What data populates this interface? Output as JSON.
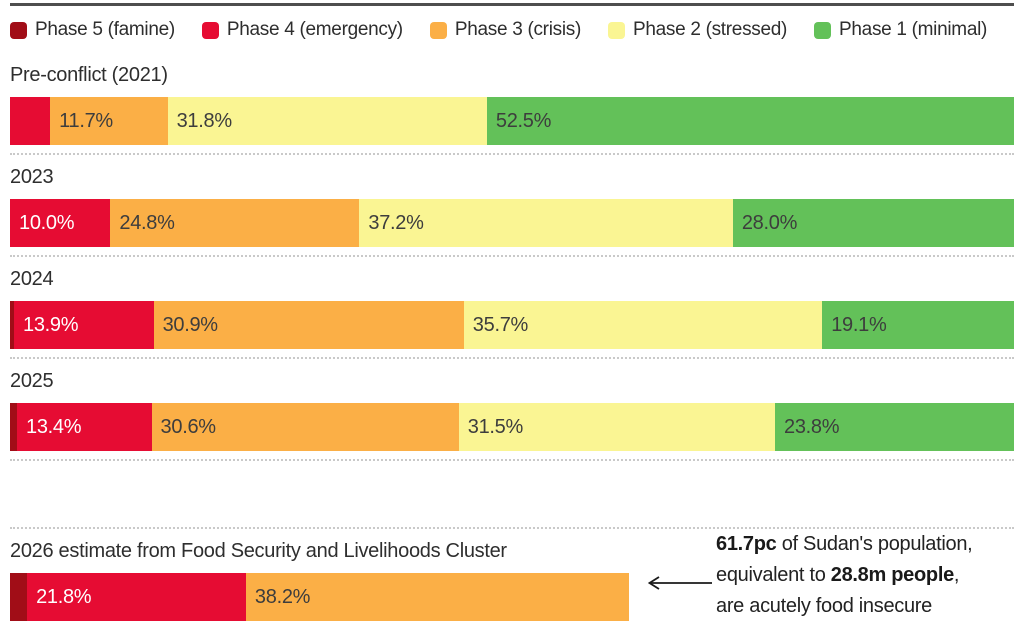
{
  "chart_data": {
    "type": "bar",
    "orientation": "horizontal-stacked",
    "unit": "%",
    "axis_max": 100,
    "grid": false,
    "legend_position": "top",
    "phases": [
      {
        "id": "phase5",
        "label": "Phase 5 (famine)",
        "color": "#A10D17",
        "text_color": "#ffffff"
      },
      {
        "id": "phase4",
        "label": "Phase 4 (emergency)",
        "color": "#E60C33",
        "text_color": "#ffffff"
      },
      {
        "id": "phase3",
        "label": "Phase 3 (crisis)",
        "color": "#FBAF46",
        "text_color": "#3d3d3d"
      },
      {
        "id": "phase2",
        "label": "Phase 2 (stressed)",
        "color": "#FAF593",
        "text_color": "#3d3d3d"
      },
      {
        "id": "phase1",
        "label": "Phase 1 (minimal)",
        "color": "#63C159",
        "text_color": "#3d3d3d"
      }
    ],
    "rows": [
      {
        "label": "Pre-conflict (2021)",
        "separated": false,
        "segments": [
          {
            "phase": "phase4",
            "value": 4.0,
            "display": ""
          },
          {
            "phase": "phase3",
            "value": 11.7,
            "display": "11.7%"
          },
          {
            "phase": "phase2",
            "value": 31.8,
            "display": "31.8%"
          },
          {
            "phase": "phase1",
            "value": 52.5,
            "display": "52.5%"
          }
        ]
      },
      {
        "label": "2023",
        "separated": false,
        "segments": [
          {
            "phase": "phase4",
            "value": 10.0,
            "display": "10.0%"
          },
          {
            "phase": "phase3",
            "value": 24.8,
            "display": "24.8%"
          },
          {
            "phase": "phase2",
            "value": 37.2,
            "display": "37.2%"
          },
          {
            "phase": "phase1",
            "value": 28.0,
            "display": "28.0%"
          }
        ]
      },
      {
        "label": "2024",
        "separated": false,
        "segments": [
          {
            "phase": "phase5",
            "value": 0.4,
            "display": ""
          },
          {
            "phase": "phase4",
            "value": 13.9,
            "display": "13.9%"
          },
          {
            "phase": "phase3",
            "value": 30.9,
            "display": "30.9%"
          },
          {
            "phase": "phase2",
            "value": 35.7,
            "display": "35.7%"
          },
          {
            "phase": "phase1",
            "value": 19.1,
            "display": "19.1%"
          }
        ]
      },
      {
        "label": "2025",
        "separated": false,
        "segments": [
          {
            "phase": "phase5",
            "value": 0.7,
            "display": ""
          },
          {
            "phase": "phase4",
            "value": 13.4,
            "display": "13.4%"
          },
          {
            "phase": "phase3",
            "value": 30.6,
            "display": "30.6%"
          },
          {
            "phase": "phase2",
            "value": 31.5,
            "display": "31.5%"
          },
          {
            "phase": "phase1",
            "value": 23.8,
            "display": "23.8%"
          }
        ]
      },
      {
        "label": "2026 estimate from Food Security and Livelihoods Cluster",
        "separated": true,
        "segments": [
          {
            "phase": "phase5",
            "value": 1.7,
            "display": ""
          },
          {
            "phase": "phase4",
            "value": 21.8,
            "display": "21.8%"
          },
          {
            "phase": "phase3",
            "value": 38.2,
            "display": "38.2%"
          }
        ]
      }
    ]
  },
  "annotation": {
    "line1_bold": "61.7pc",
    "line1_rest": " of Sudan's population,",
    "line2_pre": "equivalent to ",
    "line2_bold": "28.8m people",
    "line2_post": ",",
    "line3": "are acutely food insecure"
  }
}
